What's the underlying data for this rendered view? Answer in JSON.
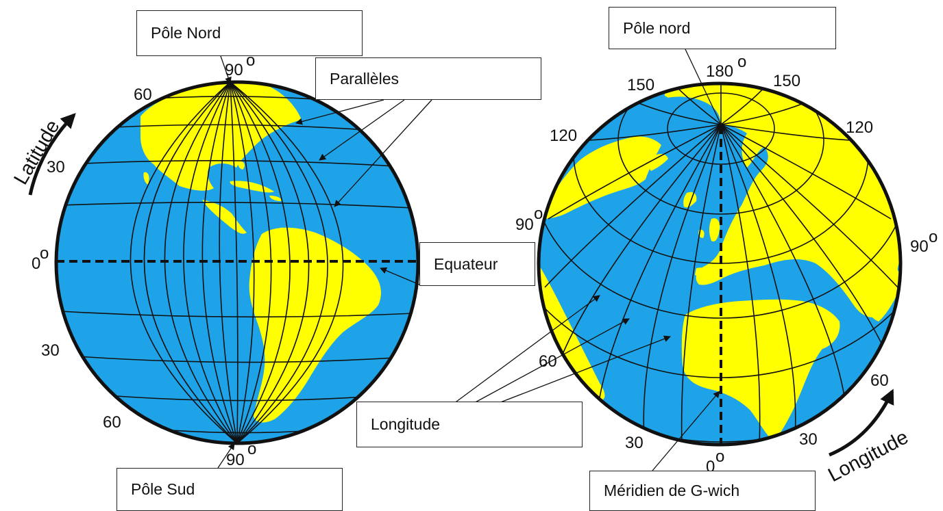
{
  "labels": {
    "pole_nord_left": "Pôle Nord",
    "paralleles": "Parallèles",
    "equateur": "Equateur",
    "pole_sud": "Pôle Sud",
    "pole_nord_right": "Pôle nord",
    "longitude_box": "Longitude",
    "meridien": "Méridien de G-wich"
  },
  "left_globe": {
    "axis_word": "Latitude",
    "degree_labels": {
      "top": "90",
      "n60": "60",
      "n30": "30",
      "zero": "0",
      "s30": "30",
      "s60": "60",
      "bottom": "90"
    }
  },
  "right_globe": {
    "axis_word": "Longitude",
    "degree_labels": {
      "top": "180",
      "tl150": "150",
      "tr150": "150",
      "l120": "120",
      "r120": "120",
      "l90": "90",
      "r90": "90",
      "l60": "60",
      "r60": "60",
      "l30": "30",
      "r30": "30",
      "zero": "0"
    }
  },
  "colors": {
    "ocean": "#1ea3e8",
    "land": "#ffff00",
    "grid": "#111111"
  }
}
